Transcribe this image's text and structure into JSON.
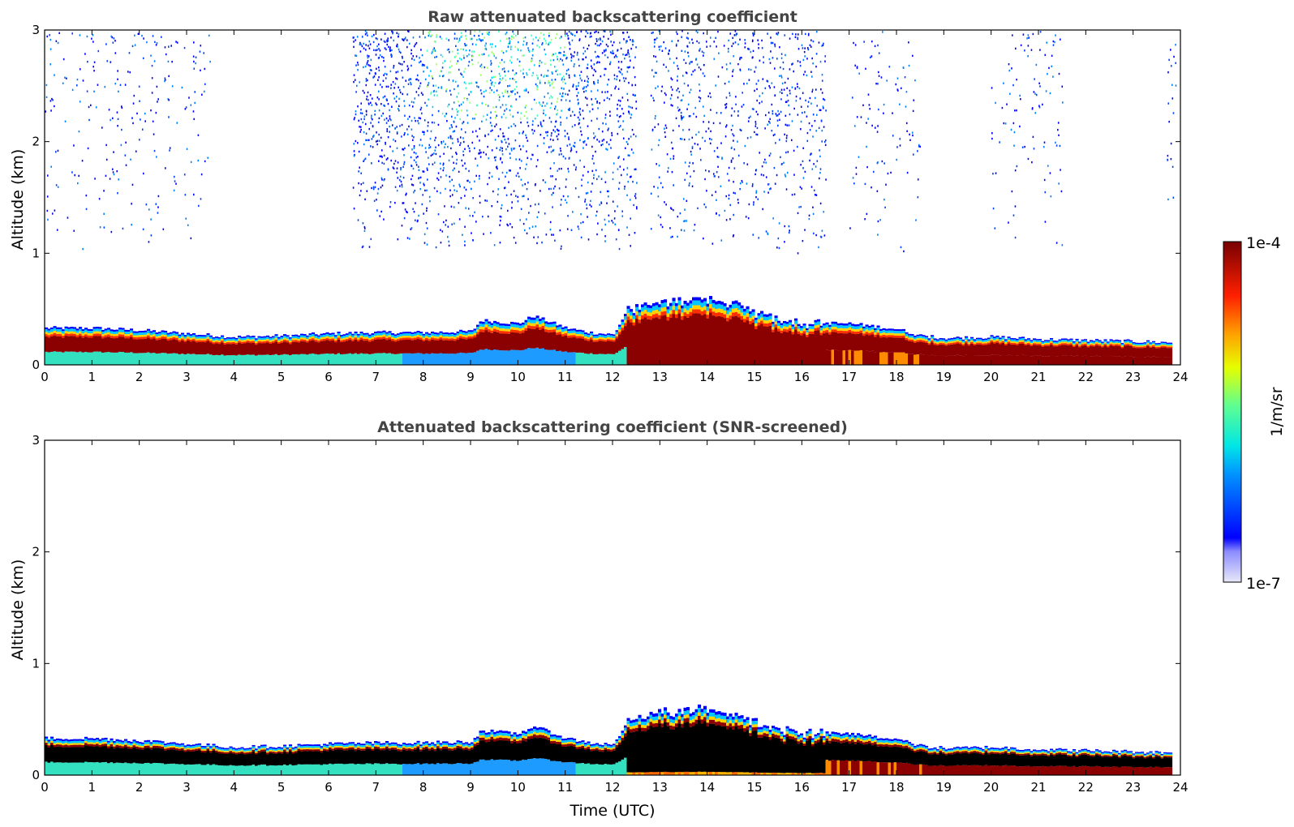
{
  "chart_data": [
    {
      "type": "heatmap",
      "title": "Raw attenuated backscattering coefficient",
      "ylabel": "Altitude (km)",
      "xlabel": "",
      "xlim": [
        0,
        24
      ],
      "ylim": [
        0,
        3
      ],
      "x_ticks": [
        "0",
        "1",
        "2",
        "3",
        "4",
        "5",
        "6",
        "7",
        "8",
        "9",
        "10",
        "11",
        "12",
        "13",
        "14",
        "15",
        "16",
        "17",
        "18",
        "19",
        "20",
        "21",
        "22",
        "23",
        "24"
      ],
      "y_ticks": [
        "0",
        "1",
        "2",
        "3"
      ],
      "screened": false,
      "layer_top_km": {
        "x": [
          0,
          1,
          2,
          3,
          4,
          5,
          6,
          7,
          8,
          9,
          9.2,
          10,
          10.3,
          11,
          11.5,
          12,
          12.3,
          13,
          13.8,
          14.5,
          15,
          16,
          17,
          18,
          18.5,
          19,
          20,
          21,
          22,
          23,
          23.8
        ],
        "y": [
          0.33,
          0.33,
          0.31,
          0.28,
          0.25,
          0.26,
          0.28,
          0.29,
          0.29,
          0.3,
          0.4,
          0.37,
          0.44,
          0.33,
          0.29,
          0.27,
          0.5,
          0.55,
          0.6,
          0.55,
          0.46,
          0.38,
          0.37,
          0.32,
          0.26,
          0.24,
          0.25,
          0.23,
          0.22,
          0.21,
          0.2
        ]
      },
      "noise_regions_hours": [
        [
          0,
          3.5
        ],
        [
          6.5,
          12.5
        ],
        [
          12.8,
          16.5
        ],
        [
          17,
          18.5
        ],
        [
          20,
          21.5
        ],
        [
          23.7,
          23.9
        ]
      ]
    },
    {
      "type": "heatmap",
      "title": "Attenuated backscattering coefficient (SNR-screened)",
      "ylabel": "Altitude (km)",
      "xlabel": "Time (UTC)",
      "xlim": [
        0,
        24
      ],
      "ylim": [
        0,
        3
      ],
      "x_ticks": [
        "0",
        "1",
        "2",
        "3",
        "4",
        "5",
        "6",
        "7",
        "8",
        "9",
        "10",
        "11",
        "12",
        "13",
        "14",
        "15",
        "16",
        "17",
        "18",
        "19",
        "20",
        "21",
        "22",
        "23",
        "24"
      ],
      "y_ticks": [
        "0",
        "1",
        "2",
        "3"
      ],
      "screened": true,
      "layer_top_km": {
        "x": [
          0,
          1,
          2,
          3,
          4,
          5,
          6,
          7,
          8,
          9,
          9.2,
          10,
          10.3,
          11,
          11.5,
          12,
          12.3,
          13,
          13.8,
          14.5,
          15,
          16,
          17,
          18,
          18.5,
          19,
          20,
          21,
          22,
          23,
          23.8
        ],
        "y": [
          0.33,
          0.33,
          0.31,
          0.28,
          0.25,
          0.26,
          0.28,
          0.29,
          0.29,
          0.3,
          0.4,
          0.37,
          0.44,
          0.33,
          0.29,
          0.27,
          0.5,
          0.55,
          0.6,
          0.55,
          0.46,
          0.38,
          0.37,
          0.32,
          0.26,
          0.24,
          0.25,
          0.23,
          0.22,
          0.21,
          0.2
        ]
      }
    }
  ],
  "colorbar": {
    "label": "1/m/sr",
    "max_label": "1e-4",
    "min_label": "1e-7",
    "range": [
      1e-07,
      0.0001
    ],
    "scale": "log",
    "colormap": "jet"
  }
}
